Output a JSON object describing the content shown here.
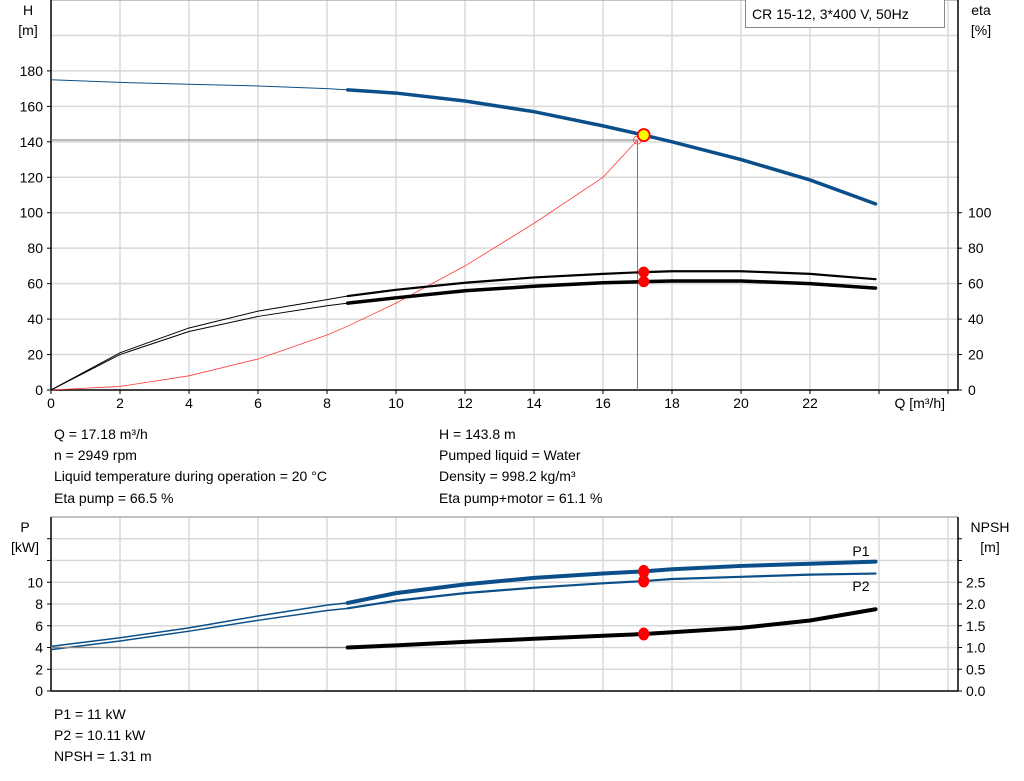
{
  "chart_data": [
    {
      "type": "line",
      "title": "CR 15-12, 3*400 V, 50Hz",
      "xlabel": "Q [m³/h]",
      "ylabel": "H\n[m]",
      "ylabel_right": "eta\n[%]",
      "xlim": [
        0,
        26
      ],
      "ylim": [
        0,
        220
      ],
      "ylim_right": [
        0,
        220
      ],
      "xticks": [
        0,
        2,
        4,
        6,
        8,
        10,
        12,
        14,
        16,
        18,
        20,
        22
      ],
      "yticks": [
        0,
        20,
        40,
        60,
        80,
        100,
        120,
        140,
        160,
        180
      ],
      "yticks_right": [
        0,
        20,
        40,
        60,
        80,
        100
      ],
      "grid": true,
      "colors": {
        "head": "#0b4f8a",
        "eta": "#000000",
        "system": "#ff3b3b",
        "marker": "#ff0000",
        "operating_point": "#ffff00"
      },
      "series": [
        {
          "id": "head",
          "axis": "left",
          "x": [
            0,
            2,
            4,
            6,
            8,
            8.6,
            10,
            12,
            14,
            16,
            17.18,
            18,
            20,
            22,
            23.9
          ],
          "y": [
            175,
            173.5,
            172.5,
            171.5,
            170,
            169.3,
            167.5,
            163,
            157,
            149,
            143.8,
            140,
            130,
            118.5,
            105
          ],
          "thick_from": 8.6
        },
        {
          "id": "eta_pump",
          "axis": "right",
          "x": [
            0,
            2,
            4,
            6,
            8,
            8.6,
            10,
            12,
            14,
            16,
            17.18,
            18,
            20,
            22,
            23.9
          ],
          "y": [
            0,
            21,
            35,
            44.5,
            51,
            53,
            56.5,
            60.5,
            63.5,
            65.5,
            66.5,
            67,
            67,
            65.5,
            62.5
          ],
          "thick_from": 8.6
        },
        {
          "id": "eta_pump_motor",
          "axis": "right",
          "x": [
            0,
            2,
            4,
            6,
            8,
            8.6,
            10,
            12,
            14,
            16,
            17.18,
            18,
            20,
            22,
            23.9
          ],
          "y": [
            0,
            20,
            33,
            41.5,
            47.5,
            49,
            52,
            56,
            58.5,
            60.5,
            61.1,
            61.5,
            61.5,
            60,
            57.5
          ],
          "thick_from": 8.6
        },
        {
          "id": "system",
          "axis": "left",
          "x": [
            0,
            2,
            4,
            6,
            8,
            8.6,
            10,
            12,
            14,
            16,
            17
          ],
          "y": [
            0,
            2,
            8,
            17.5,
            31,
            36,
            49,
            70,
            94,
            120,
            141
          ]
        }
      ],
      "operating_point": {
        "Q": 17.18,
        "H": 143.8,
        "eta_pump": 66.5,
        "eta_pump_motor": 61.1
      },
      "reference_point": {
        "Q": 17,
        "H": 141
      }
    },
    {
      "type": "line",
      "xlim": [
        0,
        26
      ],
      "ylabel": "P\n[kW]",
      "ylabel_right": "NPSH\n[m]",
      "ylim": [
        0,
        16
      ],
      "ylim_right": [
        0,
        4
      ],
      "yticks": [
        0,
        2,
        4,
        6,
        8,
        10
      ],
      "yticks_right": [
        "0.0",
        "0.5",
        "1.0",
        "1.5",
        "2.0",
        "2.5"
      ],
      "grid": true,
      "series": [
        {
          "id": "P1",
          "name": "P1",
          "axis": "left",
          "x": [
            0,
            2,
            4,
            6,
            8,
            8.6,
            10,
            12,
            14,
            16,
            17.18,
            18,
            20,
            22,
            23.9
          ],
          "y": [
            4.1,
            4.9,
            5.8,
            6.9,
            7.9,
            8.1,
            9.0,
            9.8,
            10.4,
            10.8,
            11.0,
            11.2,
            11.5,
            11.7,
            11.9
          ],
          "thick_from": 8.6
        },
        {
          "id": "P2",
          "name": "P2",
          "axis": "left",
          "x": [
            0,
            2,
            4,
            6,
            8,
            8.6,
            10,
            12,
            14,
            16,
            17.18,
            18,
            20,
            22,
            23.9
          ],
          "y": [
            3.8,
            4.6,
            5.5,
            6.5,
            7.4,
            7.6,
            8.3,
            9.0,
            9.5,
            9.9,
            10.11,
            10.3,
            10.5,
            10.7,
            10.8
          ],
          "thick_from": 8.6
        },
        {
          "id": "NPSH",
          "axis": "right",
          "x": [
            0,
            8.6,
            10,
            12,
            14,
            16,
            17.18,
            18,
            20,
            22,
            23.9
          ],
          "y": [
            1.0,
            1.0,
            1.05,
            1.13,
            1.2,
            1.27,
            1.31,
            1.35,
            1.45,
            1.62,
            1.88
          ],
          "thick_from": 8.6
        }
      ],
      "operating_point": {
        "Q": 17.18,
        "P1": 11,
        "P2": 10.11,
        "NPSH": 1.31
      }
    }
  ],
  "info": {
    "left": [
      "Q = 17.18 m³/h",
      "n = 2949 rpm",
      "Liquid temperature during operation = 20 °C",
      "Eta pump = 66.5 %"
    ],
    "right": [
      "H = 143.8 m",
      "Pumped liquid = Water",
      "Density = 998.2 kg/m³",
      "Eta pump+motor = 61.1 %"
    ],
    "power": [
      "P1 = 11 kW",
      "P2 = 10.11 kW",
      "NPSH = 1.31 m"
    ]
  }
}
